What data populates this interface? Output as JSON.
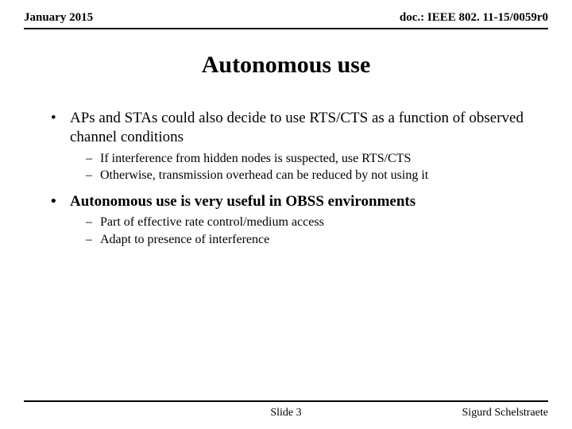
{
  "header": {
    "left": "January 2015",
    "right": "doc.: IEEE 802. 11-15/0059r0"
  },
  "title": "Autonomous use",
  "bullets": [
    {
      "text": "APs and STAs could also decide to use RTS/CTS as a function of observed channel conditions",
      "bold": false,
      "sub": [
        "If interference from hidden nodes is suspected, use RTS/CTS",
        "Otherwise, transmission overhead can be reduced by not using it"
      ]
    },
    {
      "text": "Autonomous use is very useful in OBSS environments",
      "bold": true,
      "sub": [
        "Part of effective rate control/medium access",
        "Adapt to presence of interference"
      ]
    }
  ],
  "footer": {
    "center": "Slide 3",
    "right": "Sigurd Schelstraete"
  },
  "style": {
    "background": "#ffffff",
    "text_color": "#000000",
    "font_family": "Times New Roman",
    "title_fontsize": 30,
    "header_fontsize": 15,
    "bullet_fontsize": 19,
    "subbullet_fontsize": 16,
    "footer_fontsize": 14,
    "rule_color": "#000000"
  }
}
